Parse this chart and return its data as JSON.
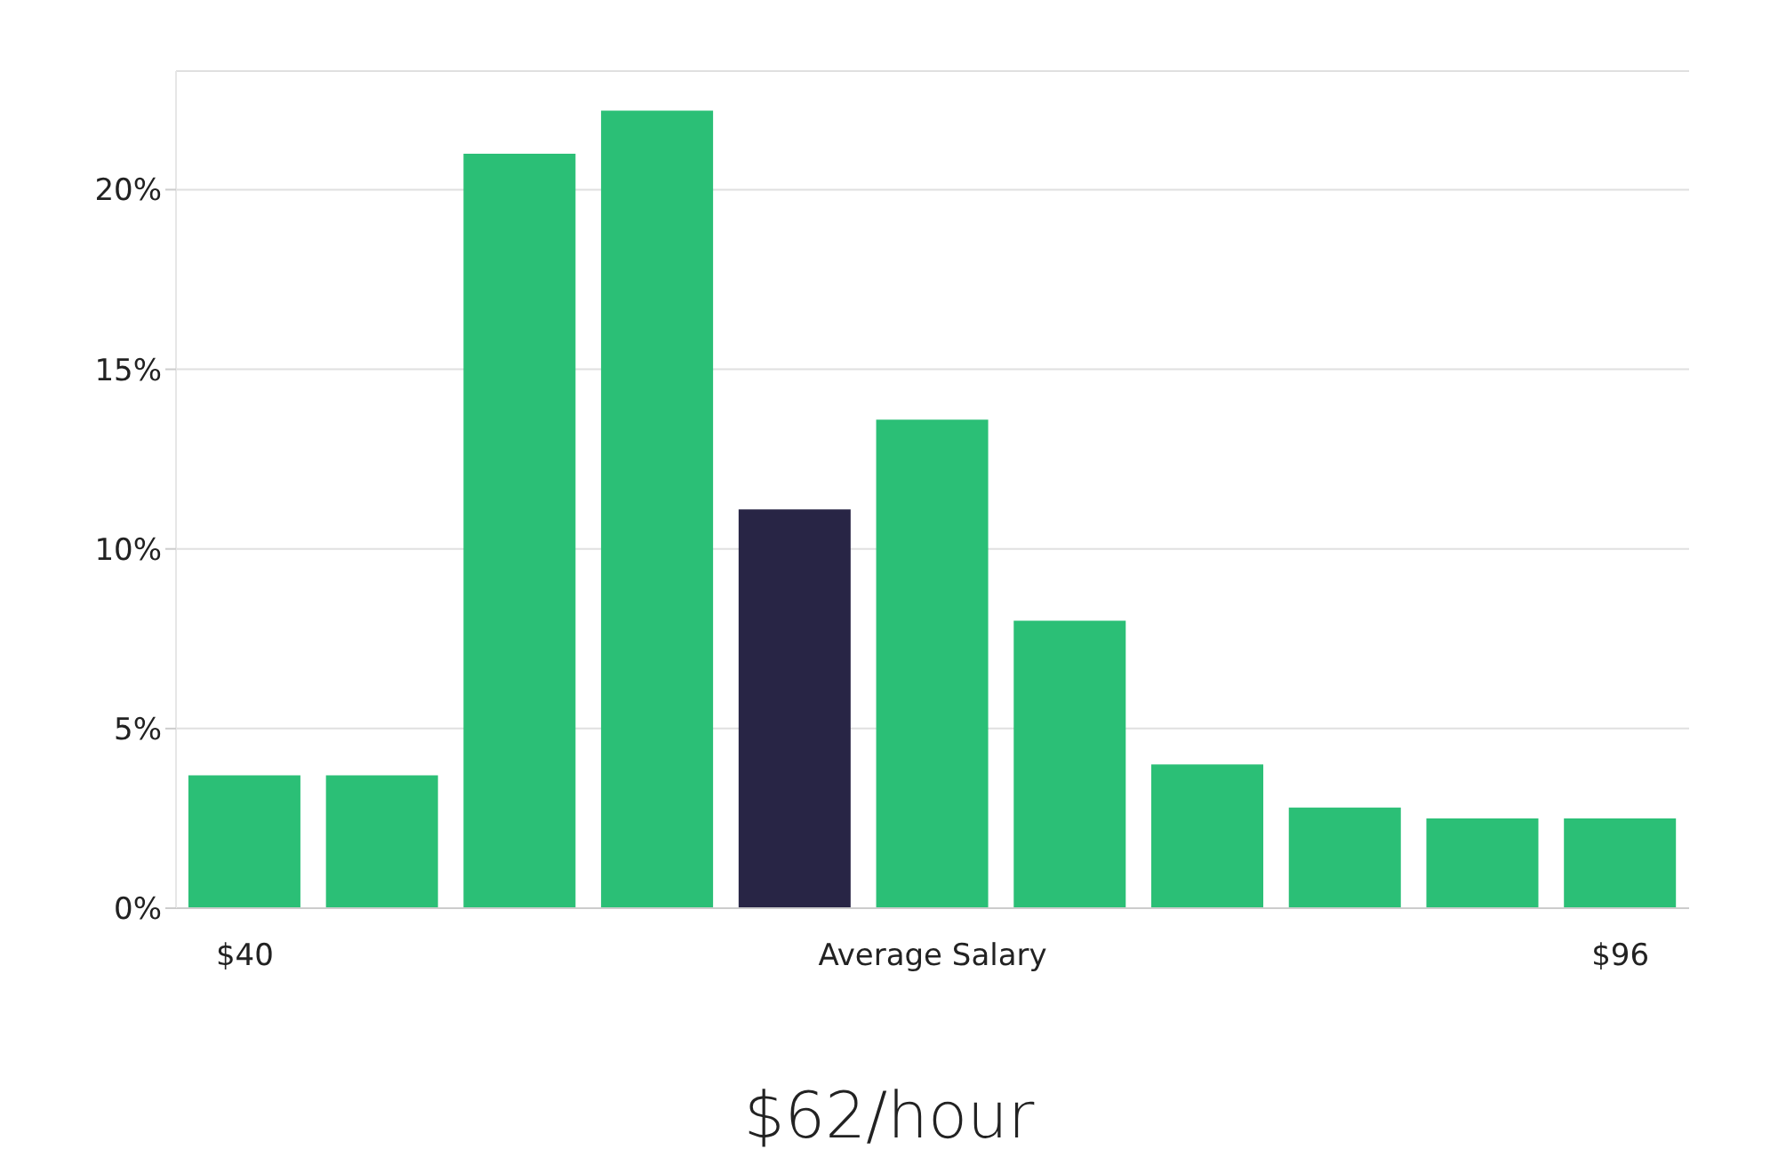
{
  "chart_data": {
    "type": "bar",
    "categories": [
      "$40",
      null,
      null,
      null,
      null,
      "Average Salary",
      null,
      null,
      null,
      null,
      "$96"
    ],
    "values": [
      3.7,
      3.7,
      21.0,
      22.2,
      11.1,
      13.6,
      8.0,
      4.0,
      2.8,
      2.5,
      2.5
    ],
    "colors": [
      "#2bbf76",
      "#2bbf76",
      "#2bbf76",
      "#2bbf76",
      "#282545",
      "#2bbf76",
      "#2bbf76",
      "#2bbf76",
      "#2bbf76",
      "#2bbf76",
      "#2bbf76"
    ],
    "ylim": [
      0,
      23.3
    ],
    "yticks": [
      {
        "value": 0,
        "label": "0%"
      },
      {
        "value": 5,
        "label": "5%"
      },
      {
        "value": 10,
        "label": "10%"
      },
      {
        "value": 15,
        "label": "15%"
      },
      {
        "value": 20,
        "label": "20%"
      }
    ],
    "grid": "y",
    "annotations": [
      "$62/hour"
    ]
  }
}
